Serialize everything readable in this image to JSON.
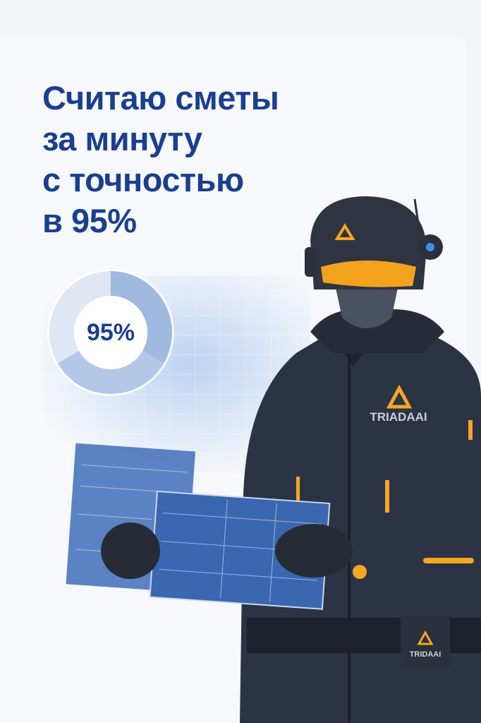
{
  "headline": {
    "lines": [
      "Считаю сметы",
      "за минуту",
      "с точностью",
      "в 95%"
    ]
  },
  "donut": {
    "label": "95%",
    "value_percent": 95,
    "colors": [
      "#9fb9e0",
      "#b6c9e8",
      "#dde6f4"
    ]
  },
  "brand": {
    "chest_logo": "TRIADAAI",
    "belt_logo": "TRIDAAI",
    "accent": "#f5a623",
    "headline_color": "#1b3f8f"
  }
}
